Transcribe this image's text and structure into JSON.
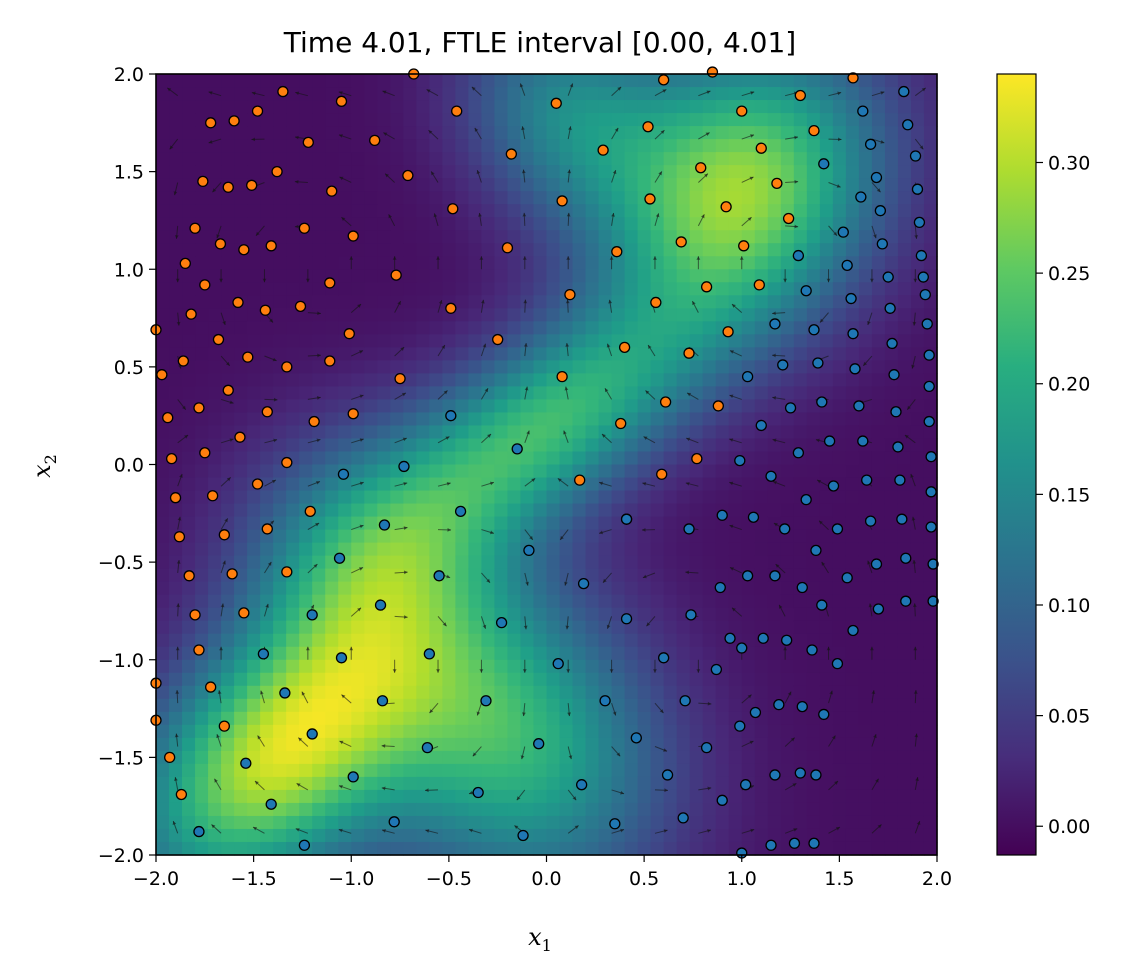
{
  "chart_data": {
    "type": "heatmap",
    "title": "Time 4.01, FTLE interval [0.00, 4.01]",
    "xlabel": "x",
    "xlabel_sub": "1",
    "ylabel": "x",
    "ylabel_sub": "2",
    "xlim": [
      -2.0,
      2.0
    ],
    "ylim": [
      -2.0,
      2.0
    ],
    "xticks": [
      "−2.0",
      "−1.5",
      "−1.0",
      "−0.5",
      "0.0",
      "0.5",
      "1.0",
      "1.5",
      "2.0"
    ],
    "yticks": [
      "−2.0",
      "−1.5",
      "−1.0",
      "−0.5",
      "0.0",
      "0.5",
      "1.0",
      "1.5",
      "2.0"
    ],
    "colorbar": {
      "colormap": "viridis",
      "range": [
        -0.013,
        0.34
      ],
      "ticks": [
        "0.00",
        "0.05",
        "0.10",
        "0.15",
        "0.20",
        "0.25",
        "0.30"
      ]
    },
    "grid_resolution": 60,
    "quiver_grid": 18,
    "series": [
      {
        "name": "orange particles",
        "color": "#ff7f0e",
        "points": [
          [
            -1.72,
            1.75
          ],
          [
            -1.6,
            1.76
          ],
          [
            -1.48,
            1.81
          ],
          [
            -1.35,
            1.91
          ],
          [
            -1.22,
            1.65
          ],
          [
            -1.05,
            1.86
          ],
          [
            -0.88,
            1.66
          ],
          [
            -0.68,
            2.0
          ],
          [
            -0.46,
            1.81
          ],
          [
            -0.18,
            1.59
          ],
          [
            0.05,
            1.85
          ],
          [
            0.29,
            1.61
          ],
          [
            0.52,
            1.73
          ],
          [
            0.6,
            1.97
          ],
          [
            0.85,
            2.01
          ],
          [
            1.0,
            1.81
          ],
          [
            1.1,
            1.62
          ],
          [
            1.3,
            1.89
          ],
          [
            1.37,
            1.71
          ],
          [
            1.57,
            1.98
          ],
          [
            -1.76,
            1.45
          ],
          [
            -1.63,
            1.42
          ],
          [
            -1.51,
            1.43
          ],
          [
            -1.38,
            1.5
          ],
          [
            -1.24,
            1.21
          ],
          [
            -1.1,
            1.4
          ],
          [
            -0.71,
            1.48
          ],
          [
            -0.48,
            1.31
          ],
          [
            -0.2,
            1.11
          ],
          [
            0.08,
            1.35
          ],
          [
            0.53,
            1.36
          ],
          [
            0.69,
            1.14
          ],
          [
            0.79,
            1.52
          ],
          [
            0.92,
            1.32
          ],
          [
            1.01,
            1.12
          ],
          [
            1.18,
            1.44
          ],
          [
            1.24,
            1.26
          ],
          [
            -1.85,
            1.03
          ],
          [
            -1.8,
            1.21
          ],
          [
            -1.67,
            1.13
          ],
          [
            -1.55,
            1.1
          ],
          [
            -1.41,
            1.12
          ],
          [
            -1.11,
            0.93
          ],
          [
            -0.99,
            1.17
          ],
          [
            -0.77,
            0.97
          ],
          [
            -0.49,
            0.8
          ],
          [
            -0.25,
            0.64
          ],
          [
            0.12,
            0.87
          ],
          [
            0.36,
            1.09
          ],
          [
            0.56,
            0.83
          ],
          [
            0.82,
            0.91
          ],
          [
            1.09,
            0.92
          ],
          [
            -2.0,
            0.69
          ],
          [
            -1.82,
            0.77
          ],
          [
            -1.75,
            0.92
          ],
          [
            -1.68,
            0.64
          ],
          [
            -1.58,
            0.83
          ],
          [
            -1.44,
            0.79
          ],
          [
            -1.26,
            0.81
          ],
          [
            -1.01,
            0.67
          ],
          [
            -0.75,
            0.44
          ],
          [
            0.08,
            0.45
          ],
          [
            0.4,
            0.6
          ],
          [
            0.73,
            0.57
          ],
          [
            0.93,
            0.68
          ],
          [
            -1.97,
            0.46
          ],
          [
            -1.94,
            0.24
          ],
          [
            -1.86,
            0.53
          ],
          [
            -1.78,
            0.29
          ],
          [
            -1.63,
            0.38
          ],
          [
            -1.53,
            0.55
          ],
          [
            -1.43,
            0.27
          ],
          [
            -1.33,
            0.5
          ],
          [
            -1.19,
            0.22
          ],
          [
            -1.11,
            0.53
          ],
          [
            -0.99,
            0.26
          ],
          [
            0.38,
            0.21
          ],
          [
            0.61,
            0.32
          ],
          [
            0.88,
            0.3
          ],
          [
            -1.92,
            0.03
          ],
          [
            -1.9,
            -0.17
          ],
          [
            -1.88,
            -0.37
          ],
          [
            -1.83,
            -0.57
          ],
          [
            -1.8,
            -0.77
          ],
          [
            -1.75,
            0.06
          ],
          [
            -1.71,
            -0.16
          ],
          [
            -1.65,
            -0.36
          ],
          [
            -1.61,
            -0.56
          ],
          [
            -1.57,
            0.14
          ],
          [
            -1.55,
            -0.76
          ],
          [
            -1.48,
            -0.1
          ],
          [
            -1.43,
            -0.33
          ],
          [
            -1.33,
            0.01
          ],
          [
            -1.33,
            -0.55
          ],
          [
            -1.21,
            -0.24
          ],
          [
            0.17,
            -0.08
          ],
          [
            0.59,
            -0.05
          ],
          [
            0.77,
            0.03
          ],
          [
            -1.78,
            -0.95
          ],
          [
            -1.72,
            -1.14
          ],
          [
            -1.65,
            -1.34
          ],
          [
            -2.0,
            -1.31
          ],
          [
            -1.93,
            -1.5
          ],
          [
            -1.87,
            -1.69
          ],
          [
            -2.0,
            -1.12
          ]
        ]
      },
      {
        "name": "blue particles",
        "color": "#1f77b4",
        "points": [
          [
            1.62,
            1.81
          ],
          [
            1.83,
            1.91
          ],
          [
            1.85,
            1.74
          ],
          [
            1.66,
            1.64
          ],
          [
            1.89,
            1.58
          ],
          [
            1.42,
            1.54
          ],
          [
            1.69,
            1.47
          ],
          [
            1.9,
            1.41
          ],
          [
            1.61,
            1.37
          ],
          [
            1.71,
            1.3
          ],
          [
            1.91,
            1.24
          ],
          [
            1.52,
            1.19
          ],
          [
            1.72,
            1.13
          ],
          [
            1.29,
            1.07
          ],
          [
            1.92,
            1.07
          ],
          [
            1.54,
            1.02
          ],
          [
            1.75,
            0.96
          ],
          [
            1.93,
            0.96
          ],
          [
            1.33,
            0.89
          ],
          [
            1.56,
            0.85
          ],
          [
            1.94,
            0.87
          ],
          [
            1.76,
            0.8
          ],
          [
            1.17,
            0.72
          ],
          [
            1.37,
            0.69
          ],
          [
            1.57,
            0.67
          ],
          [
            1.95,
            0.72
          ],
          [
            1.77,
            0.62
          ],
          [
            1.21,
            0.51
          ],
          [
            1.39,
            0.52
          ],
          [
            1.58,
            0.49
          ],
          [
            1.96,
            0.56
          ],
          [
            1.03,
            0.45
          ],
          [
            1.78,
            0.46
          ],
          [
            1.41,
            0.32
          ],
          [
            1.6,
            0.3
          ],
          [
            1.25,
            0.29
          ],
          [
            1.96,
            0.4
          ],
          [
            1.79,
            0.27
          ],
          [
            1.1,
            0.2
          ],
          [
            1.45,
            0.12
          ],
          [
            1.62,
            0.12
          ],
          [
            1.96,
            0.22
          ],
          [
            1.8,
            0.09
          ],
          [
            0.99,
            0.02
          ],
          [
            1.29,
            0.06
          ],
          [
            1.97,
            0.04
          ],
          [
            1.64,
            -0.08
          ],
          [
            1.81,
            -0.08
          ],
          [
            1.15,
            -0.06
          ],
          [
            1.47,
            -0.11
          ],
          [
            1.97,
            -0.14
          ],
          [
            1.33,
            -0.18
          ],
          [
            1.66,
            -0.29
          ],
          [
            1.82,
            -0.28
          ],
          [
            0.41,
            -0.28
          ],
          [
            0.73,
            -0.33
          ],
          [
            0.9,
            -0.26
          ],
          [
            1.06,
            -0.27
          ],
          [
            1.22,
            -0.33
          ],
          [
            1.49,
            -0.33
          ],
          [
            1.97,
            -0.32
          ],
          [
            1.38,
            -0.44
          ],
          [
            1.69,
            -0.51
          ],
          [
            1.84,
            -0.48
          ],
          [
            1.98,
            -0.51
          ],
          [
            1.03,
            -0.57
          ],
          [
            1.17,
            -0.57
          ],
          [
            1.54,
            -0.58
          ],
          [
            0.19,
            -0.61
          ],
          [
            0.89,
            -0.63
          ],
          [
            1.31,
            -0.63
          ],
          [
            1.41,
            -0.72
          ],
          [
            1.7,
            -0.74
          ],
          [
            1.84,
            -0.7
          ],
          [
            1.98,
            -0.7
          ],
          [
            0.41,
            -0.79
          ],
          [
            0.74,
            -0.77
          ],
          [
            1.57,
            -0.85
          ],
          [
            0.94,
            -0.89
          ],
          [
            1.11,
            -0.89
          ],
          [
            1.23,
            -0.9
          ],
          [
            1.0,
            -0.94
          ],
          [
            1.36,
            -0.95
          ],
          [
            0.6,
            -0.99
          ],
          [
            0.06,
            -1.02
          ],
          [
            0.87,
            -1.05
          ],
          [
            1.49,
            -1.02
          ],
          [
            0.71,
            -1.21
          ],
          [
            1.07,
            -1.27
          ],
          [
            1.19,
            -1.23
          ],
          [
            1.31,
            -1.24
          ],
          [
            1.42,
            -1.28
          ],
          [
            0.3,
            -1.21
          ],
          [
            0.46,
            -1.4
          ],
          [
            0.99,
            -1.34
          ],
          [
            0.82,
            -1.45
          ],
          [
            0.62,
            -1.59
          ],
          [
            1.17,
            -1.59
          ],
          [
            1.3,
            -1.58
          ],
          [
            1.38,
            -1.59
          ],
          [
            0.9,
            -1.72
          ],
          [
            1.02,
            -1.64
          ],
          [
            0.18,
            -1.64
          ],
          [
            0.7,
            -1.81
          ],
          [
            0.35,
            -1.84
          ],
          [
            1.15,
            -1.95
          ],
          [
            1.27,
            -1.94
          ],
          [
            1.37,
            -1.94
          ],
          [
            1.0,
            -1.99
          ],
          [
            -0.04,
            -1.43
          ],
          [
            -0.12,
            -1.9
          ],
          [
            -0.35,
            -1.68
          ],
          [
            -0.31,
            -1.21
          ],
          [
            -0.61,
            -1.45
          ],
          [
            -0.6,
            -0.97
          ],
          [
            -0.84,
            -1.21
          ],
          [
            -0.99,
            -1.6
          ],
          [
            -0.78,
            -1.83
          ],
          [
            -1.05,
            -0.99
          ],
          [
            -1.2,
            -0.77
          ],
          [
            -1.2,
            -1.38
          ],
          [
            -1.34,
            -1.17
          ],
          [
            -1.45,
            -0.97
          ],
          [
            -1.41,
            -1.74
          ],
          [
            -1.54,
            -1.53
          ],
          [
            -1.78,
            -1.88
          ],
          [
            -1.24,
            -1.95
          ],
          [
            -1.06,
            -0.48
          ],
          [
            -0.83,
            -0.31
          ],
          [
            -0.85,
            -0.72
          ],
          [
            -1.04,
            -0.05
          ],
          [
            -0.73,
            -0.01
          ],
          [
            -0.55,
            -0.57
          ],
          [
            -0.49,
            0.25
          ],
          [
            -0.44,
            -0.24
          ],
          [
            -0.15,
            0.08
          ],
          [
            -0.09,
            -0.44
          ],
          [
            -0.23,
            -0.81
          ],
          [
            0.41,
            -0.28
          ]
        ]
      }
    ]
  }
}
